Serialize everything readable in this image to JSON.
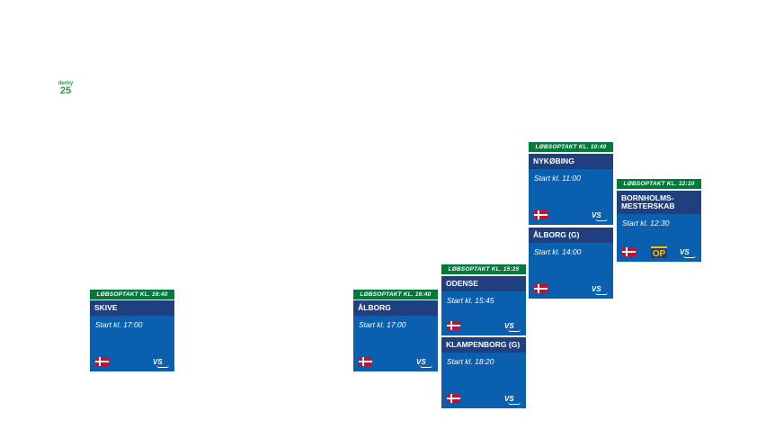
{
  "logo": {
    "line1": "derby",
    "line2": "25"
  },
  "banners": {
    "skive": "LØBSOPTAKT KL. 16:40",
    "alborg1": "LØBSOPTAKT KL. 16:40",
    "odense": "LØBSOPTAKT KL. 15:25",
    "nykobing": "LØBSOPTAKT KL. 10:40",
    "bornholm": "LØBSOPTAKT KL. 12:10"
  },
  "races": {
    "skive": {
      "name": "SKIVE",
      "start": "Start kl. 17:00"
    },
    "alborg1": {
      "name": "ÅLBORG",
      "start": "Start kl. 17:00"
    },
    "odense": {
      "name": "ODENSE",
      "start": "Start kl. 15:45"
    },
    "klampenborg": {
      "name": "KLAMPENBORG (G)",
      "start": "Start kl. 18:20"
    },
    "nykobing": {
      "name": "NYKØBING",
      "start": "Start kl. 11:00"
    },
    "alborg2": {
      "name": "ÅLBORG (G)",
      "start": "Start kl. 14:00"
    },
    "bornholm": {
      "name": "BORNHOLMS-MESTERSKAB",
      "start": "Start kl. 12:30"
    }
  },
  "badges": {
    "vs": "VS",
    "op": "OP"
  },
  "icons": {
    "flag": "denmark-flag-icon",
    "vs": "vs-logo-icon",
    "op": "op-logo-icon"
  },
  "colors": {
    "banner": "#00793a",
    "card": "#0a5fae",
    "name_bar": "#1f3f7f",
    "logo": "#1aa33a"
  }
}
